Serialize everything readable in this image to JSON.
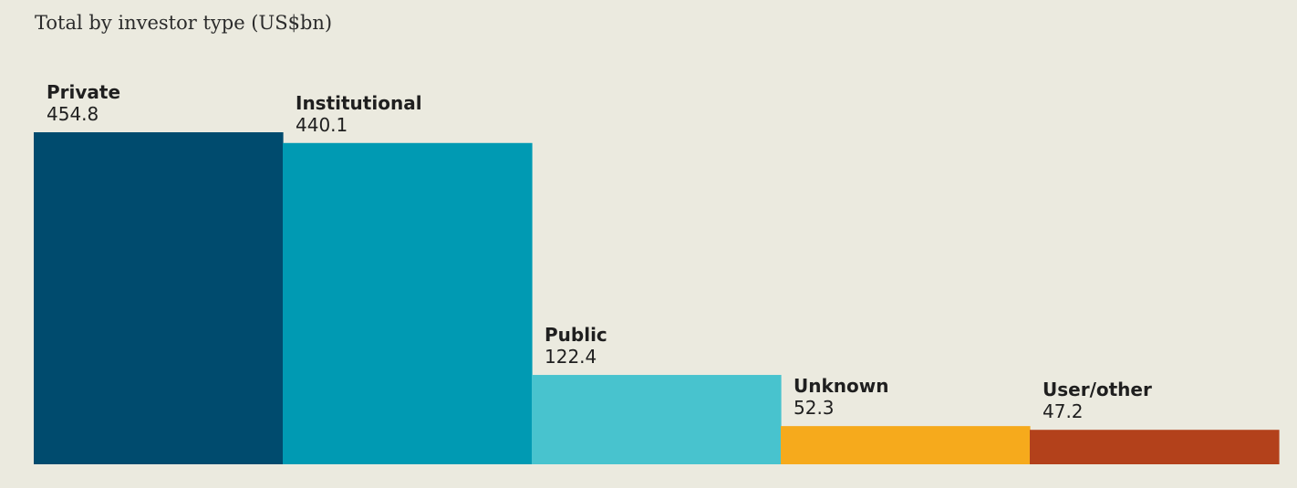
{
  "chart_data": {
    "type": "bar",
    "title": "Total by investor type (US$bn)",
    "xlabel": "",
    "ylabel": "",
    "grid": false,
    "ylim": [
      0,
      454.8
    ],
    "categories": [
      "Private",
      "Institutional",
      "Public",
      "Unknown",
      "User/other"
    ],
    "values": [
      454.8,
      440.1,
      122.4,
      52.3,
      47.2
    ],
    "value_labels": [
      "454.8",
      "440.1",
      "122.4",
      "52.3",
      "47.2"
    ],
    "colors": [
      "#004B6E",
      "#009AB3",
      "#48C3CE",
      "#F6AA1C",
      "#B3411B"
    ]
  }
}
